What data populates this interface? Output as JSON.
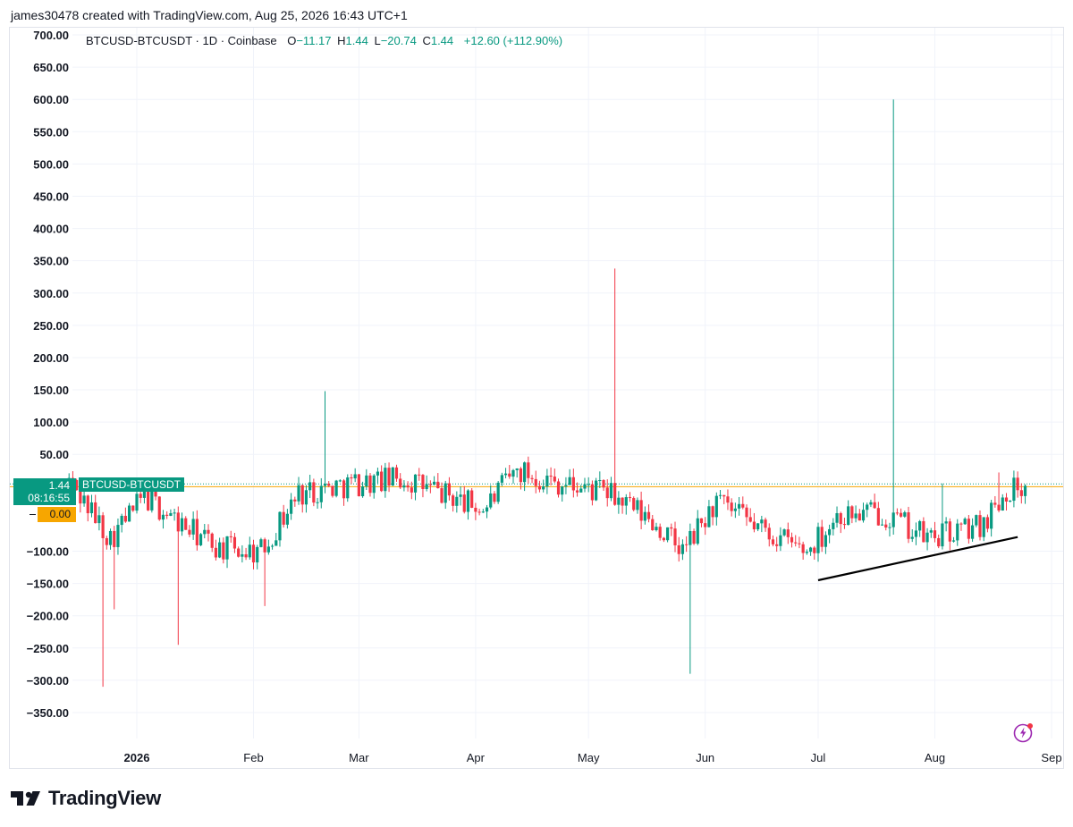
{
  "header": {
    "credit": "james30478 created with TradingView.com, Aug 25, 2026 16:43 UTC+1"
  },
  "legend": {
    "name": "BTCUSD-BTCUSDT · 1D · Coinbase",
    "open_label": "O",
    "open": "−11.17",
    "high_label": "H",
    "high": "1.44",
    "low_label": "L",
    "low": "−20.74",
    "close_label": "C",
    "close": "1.44",
    "change": "+12.60 (+112.90%)"
  },
  "badges": {
    "last_price": "1.44",
    "countdown": "08:16:55",
    "symbol": "BTCUSD-BTCUSDT",
    "zero_level": "0.00"
  },
  "branding": {
    "wordmark": "TradingView"
  },
  "colors": {
    "up": "#089981",
    "down": "#F23645",
    "grid": "#F0F3FA",
    "price_line": "#089981",
    "level_line": "#F7A600",
    "trendline": "#000000"
  },
  "chart_data": {
    "type": "candlestick",
    "title": "BTCUSD-BTCUSDT · 1D · Coinbase",
    "y_ticks": [
      "700.00",
      "650.00",
      "600.00",
      "550.00",
      "500.00",
      "450.00",
      "400.00",
      "350.00",
      "300.00",
      "250.00",
      "200.00",
      "150.00",
      "100.00",
      "50.00",
      "0.00",
      "−100.00",
      "−150.00",
      "−200.00",
      "−250.00",
      "−300.00",
      "−350.00"
    ],
    "x_ticks": [
      "2026",
      "Feb",
      "Mar",
      "Apr",
      "May",
      "Jun",
      "Jul",
      "Aug",
      "Sep"
    ],
    "ylim": [
      -400,
      700
    ],
    "horizontal_lines": [
      {
        "value": 1.44,
        "style": "dotted",
        "color": "#089981"
      },
      {
        "value": 0.0,
        "style": "solid",
        "color": "#F7A600"
      }
    ],
    "trendline": {
      "from": {
        "date": "2026-07-01",
        "value": -145
      },
      "to": {
        "date": "2026-08-23",
        "value": -78
      }
    },
    "anchors": [
      {
        "date": "2025-12-14",
        "value": 10
      },
      {
        "date": "2025-12-25",
        "value": -80
      },
      {
        "date": "2026-01-03",
        "value": -15
      },
      {
        "date": "2026-01-13",
        "value": -60
      },
      {
        "date": "2026-01-23",
        "value": -95
      },
      {
        "date": "2026-02-03",
        "value": -100
      },
      {
        "date": "2026-02-13",
        "value": -10
      },
      {
        "date": "2026-02-27",
        "value": 5
      },
      {
        "date": "2026-03-13",
        "value": 12
      },
      {
        "date": "2026-03-25",
        "value": -15
      },
      {
        "date": "2026-04-03",
        "value": -35
      },
      {
        "date": "2026-04-12",
        "value": 25
      },
      {
        "date": "2026-04-24",
        "value": 5
      },
      {
        "date": "2026-05-06",
        "value": -10
      },
      {
        "date": "2026-05-18",
        "value": -55
      },
      {
        "date": "2026-05-26",
        "value": -100
      },
      {
        "date": "2026-06-04",
        "value": -25
      },
      {
        "date": "2026-06-14",
        "value": -60
      },
      {
        "date": "2026-06-28",
        "value": -100
      },
      {
        "date": "2026-07-06",
        "value": -45
      },
      {
        "date": "2026-07-18",
        "value": -40
      },
      {
        "date": "2026-07-30",
        "value": -80
      },
      {
        "date": "2026-08-13",
        "value": -60
      },
      {
        "date": "2026-08-20",
        "value": -5
      },
      {
        "date": "2026-08-25",
        "value": 1.44
      }
    ],
    "spikes": [
      {
        "date": "2025-12-23",
        "low": -310
      },
      {
        "date": "2025-12-26",
        "low": -190
      },
      {
        "date": "2026-01-12",
        "low": -245
      },
      {
        "date": "2026-02-04",
        "low": -185
      },
      {
        "date": "2026-02-20",
        "high": 148
      },
      {
        "date": "2026-05-08",
        "high": 338
      },
      {
        "date": "2026-05-28",
        "low": -290
      },
      {
        "date": "2026-07-21",
        "high": 600
      },
      {
        "date": "2026-08-03",
        "high": 5
      },
      {
        "date": "2026-08-18",
        "high": 22
      }
    ]
  }
}
